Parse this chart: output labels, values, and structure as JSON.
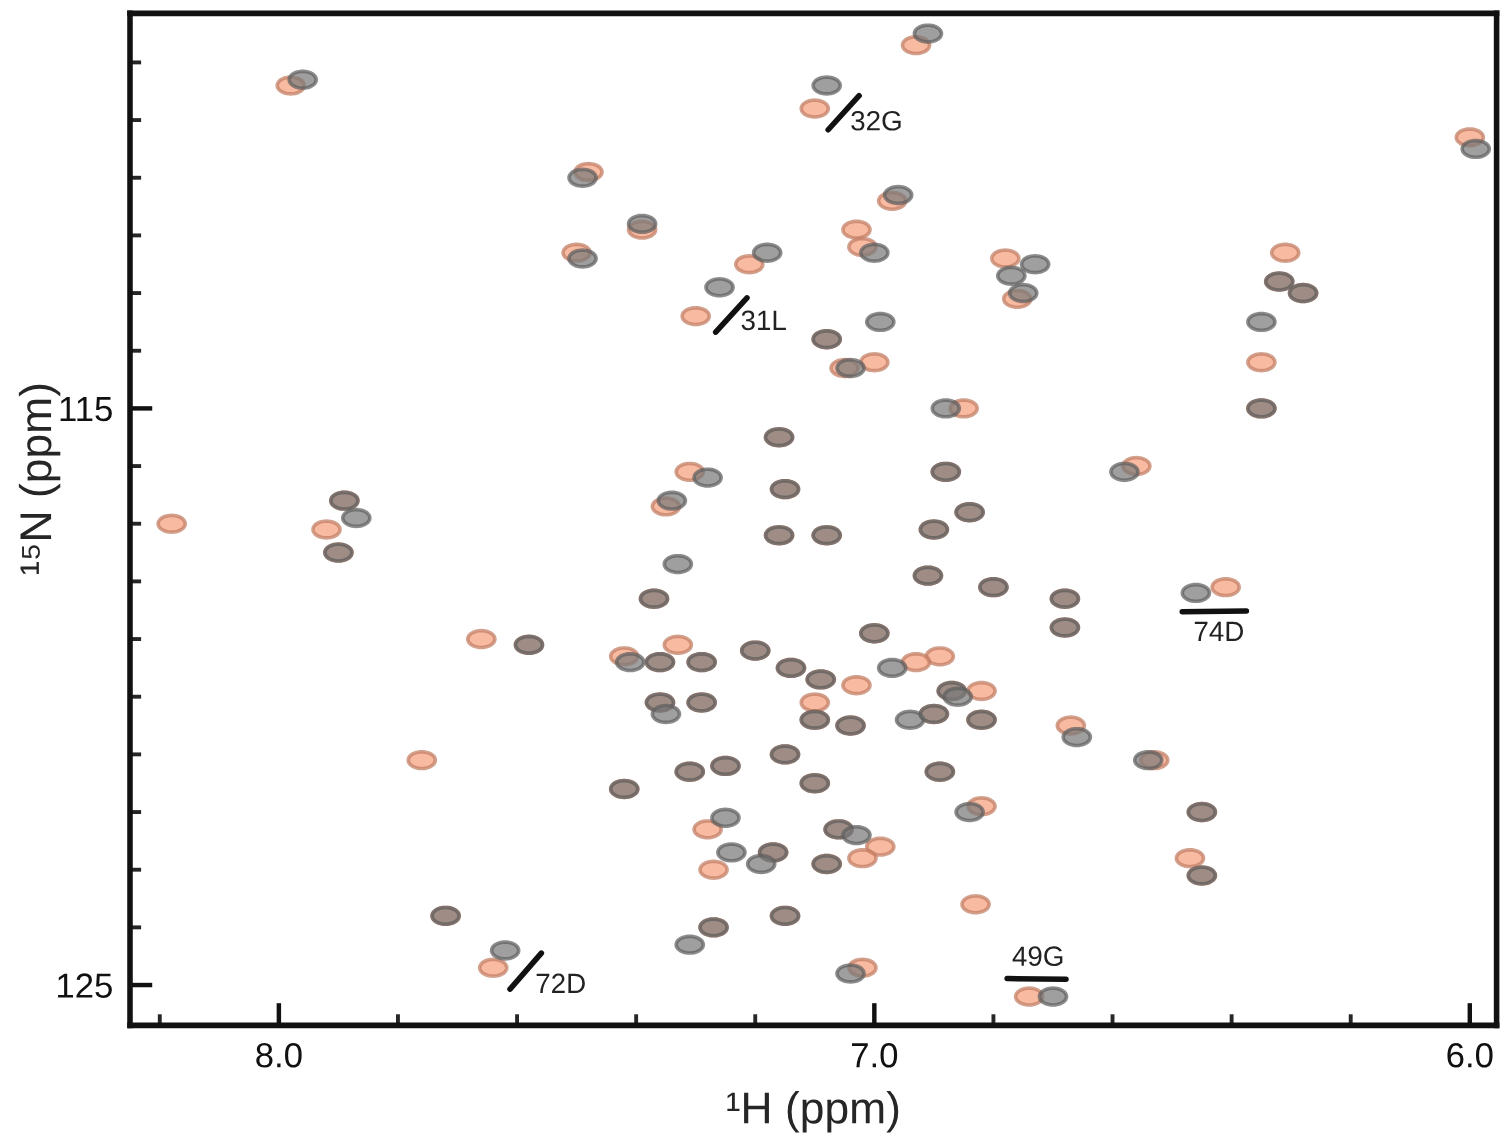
{
  "chart_data": {
    "type": "scatter",
    "xlabel": "¹H (ppm)",
    "ylabel": "¹⁵N (ppm)",
    "xlim": [
      8.25,
      5.955
    ],
    "ylim": [
      125.7,
      108.15
    ],
    "xticks": [
      {
        "value": 8.2,
        "label": null
      },
      {
        "value": 8,
        "label": "8.0"
      },
      {
        "value": 7.8,
        "label": null
      },
      {
        "value": 7.6,
        "label": null
      },
      {
        "value": 7.4,
        "label": null
      },
      {
        "value": 7.2,
        "label": null
      },
      {
        "value": 7,
        "label": "7.0"
      },
      {
        "value": 6.8,
        "label": null
      },
      {
        "value": 6.6,
        "label": null
      },
      {
        "value": 6.4,
        "label": null
      },
      {
        "value": 6.2,
        "label": null
      },
      {
        "value": 6,
        "label": "6.0"
      }
    ],
    "yticks": [
      {
        "value": 109,
        "label": null
      },
      {
        "value": 110,
        "label": null
      },
      {
        "value": 111,
        "label": null
      },
      {
        "value": 112,
        "label": null
      },
      {
        "value": 113,
        "label": null
      },
      {
        "value": 114,
        "label": null
      },
      115,
      {
        "value": 116,
        "label": null
      },
      {
        "value": 117,
        "label": null
      },
      {
        "value": 118,
        "label": null
      },
      {
        "value": 119,
        "label": null
      },
      {
        "value": 120,
        "label": null
      },
      {
        "value": 121,
        "label": null
      },
      {
        "value": 122,
        "label": null
      },
      {
        "value": 123,
        "label": null
      },
      {
        "value": 124,
        "label": null
      },
      125
    ],
    "marker": "circle",
    "series": [
      {
        "color": "#f7a07e",
        "x": [
          7.98,
          7.48,
          7.5,
          7.89,
          7.92,
          8.18,
          7.9,
          7.66,
          7.58,
          7.76,
          7.72,
          7.64,
          6.93,
          7.1,
          6.97,
          7.39,
          7.21,
          7.03,
          7.02,
          7.3,
          6.76,
          6.78,
          7.08,
          7.0,
          7.05,
          6.85,
          7.16,
          7.31,
          7.15,
          7.35,
          6.88,
          6.84,
          6.0,
          6.32,
          6.28,
          6.31,
          6.35,
          6.35,
          6.56,
          6.68,
          6.68,
          6.41,
          6.67,
          6.53,
          6.45,
          6.47,
          6.45,
          7.16,
          7.08,
          6.9,
          6.91,
          7.37,
          6.8,
          7.0,
          7.2,
          7.42,
          7.36,
          7.29,
          7.33,
          6.89,
          6.93,
          7.14,
          7.09,
          7.03,
          6.87,
          6.82,
          7.36,
          7.29,
          7.1,
          7.1,
          7.04,
          6.9,
          6.82,
          7.25,
          7.31,
          7.15,
          7.42,
          7.1,
          6.89,
          6.82,
          7.28,
          7.06,
          6.99,
          7.02,
          7.17,
          7.08,
          7.27,
          6.83,
          7.15,
          7.27,
          7.02,
          6.74
        ],
        "values": [
          109.4,
          110.9,
          112.3,
          116.6,
          117.1,
          117.0,
          117.5,
          119.0,
          119.1,
          121.1,
          123.8,
          124.7,
          108.7,
          109.8,
          111.4,
          111.9,
          112.5,
          111.9,
          112.2,
          113.4,
          113.1,
          112.4,
          113.8,
          114.2,
          114.3,
          115.0,
          115.5,
          116.1,
          116.4,
          116.7,
          116.1,
          116.8,
          110.3,
          112.8,
          113.0,
          112.3,
          114.2,
          115.0,
          116.0,
          118.3,
          118.8,
          118.1,
          120.5,
          121.1,
          122.0,
          122.8,
          123.1,
          117.2,
          117.2,
          117.1,
          117.9,
          118.3,
          118.1,
          118.9,
          119.2,
          119.3,
          119.4,
          119.4,
          119.1,
          119.3,
          119.4,
          119.5,
          119.7,
          119.8,
          119.9,
          119.9,
          120.1,
          120.1,
          120.1,
          120.4,
          120.5,
          120.3,
          120.4,
          121.2,
          121.3,
          121.0,
          121.6,
          121.5,
          121.3,
          121.9,
          122.3,
          122.3,
          122.6,
          122.8,
          122.7,
          122.9,
          123.0,
          123.6,
          123.8,
          124.0,
          124.7,
          125.2
        ]
      },
      {
        "color": "#7a7a7a",
        "x": [
          7.96,
          7.49,
          7.49,
          7.89,
          7.87,
          7.9,
          7.58,
          7.72,
          7.62,
          6.91,
          7.08,
          6.96,
          7.39,
          7.18,
          7.0,
          7.26,
          6.99,
          6.77,
          6.75,
          6.73,
          7.08,
          7.04,
          6.88,
          7.16,
          7.28,
          7.15,
          7.34,
          6.88,
          6.84,
          5.99,
          6.32,
          6.28,
          6.35,
          6.35,
          6.58,
          6.68,
          6.68,
          6.46,
          6.66,
          6.54,
          6.45,
          6.45,
          7.16,
          7.08,
          6.9,
          7.33,
          6.91,
          7.37,
          6.8,
          7.0,
          7.2,
          7.41,
          7.36,
          7.29,
          6.97,
          7.14,
          7.09,
          6.87,
          6.86,
          7.36,
          7.29,
          7.35,
          7.1,
          7.04,
          6.94,
          6.9,
          6.82,
          7.25,
          7.31,
          7.15,
          7.42,
          7.1,
          6.89,
          6.84,
          7.25,
          7.06,
          7.03,
          7.24,
          7.17,
          7.19,
          7.08,
          7.15,
          7.27,
          7.31,
          7.04,
          6.7
        ],
        "values": [
          109.3,
          111.0,
          112.4,
          116.6,
          116.9,
          117.5,
          119.1,
          123.8,
          124.4,
          108.5,
          109.4,
          111.3,
          111.8,
          112.3,
          112.3,
          112.9,
          113.5,
          112.7,
          113.0,
          112.5,
          113.8,
          114.3,
          115.0,
          115.5,
          116.2,
          116.4,
          116.6,
          116.1,
          116.8,
          110.5,
          112.8,
          113.0,
          113.5,
          115.0,
          116.1,
          118.3,
          118.8,
          118.2,
          120.7,
          121.1,
          122.0,
          123.1,
          117.2,
          117.2,
          117.1,
          117.7,
          117.9,
          118.3,
          118.1,
          118.9,
          119.2,
          119.4,
          119.4,
          119.4,
          119.5,
          119.5,
          119.7,
          119.9,
          120.0,
          120.1,
          120.1,
          120.3,
          120.4,
          120.5,
          120.4,
          120.3,
          120.4,
          121.2,
          121.3,
          121.0,
          121.6,
          121.5,
          121.3,
          122.0,
          122.1,
          122.3,
          122.4,
          122.7,
          122.7,
          122.9,
          122.9,
          123.8,
          124.0,
          124.3,
          124.8,
          125.2
        ]
      }
    ],
    "annotations": [
      {
        "text": "32G",
        "x": 7.1,
        "y": 109.8
      },
      {
        "text": "31L",
        "x": 7.3,
        "y": 113.4
      },
      {
        "text": "74D",
        "x": 6.41,
        "y": 118.1
      },
      {
        "text": "72D",
        "x": 7.64,
        "y": 124.7
      },
      {
        "text": "49G",
        "x": 6.74,
        "y": 125.2
      }
    ]
  }
}
